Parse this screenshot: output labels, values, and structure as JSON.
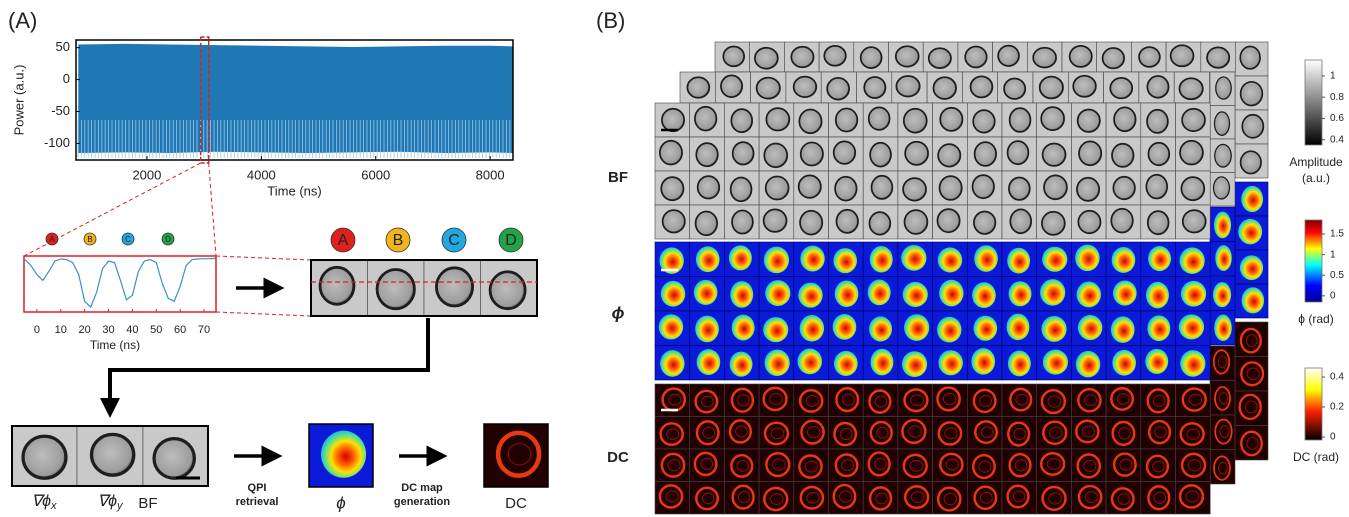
{
  "panel_a": {
    "label": "(A)",
    "power_chart": {
      "type": "line",
      "y_label": "Power (a.u.)",
      "x_label": "Time (ns)",
      "xlim": [
        760,
        8400
      ],
      "ylim": [
        -126,
        62
      ],
      "xticks": [
        2000,
        4000,
        6000,
        8000
      ],
      "yticks": [
        50,
        0,
        -50,
        -100
      ],
      "color": "#1f77b4",
      "zoom_window": [
        2940,
        3080
      ],
      "x": [
        800,
        1600,
        2400,
        3200,
        4000,
        4800,
        5600,
        6400,
        7200,
        8000,
        8400
      ],
      "series": [
        {
          "values": [
            55,
            56,
            55,
            54,
            53,
            52,
            51,
            52,
            53,
            53,
            52
          ]
        },
        {
          "values": [
            -115,
            -114,
            -115,
            -113,
            -114,
            -115,
            -114,
            -113,
            -115,
            -114,
            -115
          ]
        }
      ]
    },
    "inset_chart": {
      "type": "line",
      "x_label": "Time (ns)",
      "xlim": [
        -5.4,
        75
      ],
      "ylim": [
        -126,
        62
      ],
      "xticks": [
        0,
        10,
        20,
        30,
        40,
        50,
        60,
        70
      ],
      "color": "#3a8fd0",
      "x": [
        -5,
        -2.5,
        0,
        2.5,
        5,
        7.5,
        10,
        12.5,
        15,
        17.5,
        20,
        22.5,
        25,
        27.5,
        30,
        32.5,
        35,
        37.5,
        40,
        42.5,
        45,
        47.5,
        50,
        52.5,
        55,
        57.5,
        60,
        62.5,
        65,
        67.5,
        70,
        72.5,
        75
      ],
      "values": [
        50,
        30,
        0,
        -20,
        10,
        45,
        52,
        50,
        40,
        0,
        -90,
        -110,
        -60,
        20,
        45,
        40,
        -20,
        -85,
        -70,
        10,
        45,
        50,
        40,
        -30,
        -80,
        -90,
        -40,
        30,
        50,
        52,
        53,
        53,
        54
      ]
    },
    "cell_labels": [
      {
        "text": "A",
        "color": "#e0201b"
      },
      {
        "text": "B",
        "color": "#f2b31c"
      },
      {
        "text": "C",
        "color": "#22a8e0"
      },
      {
        "text": "D",
        "color": "#22a348"
      }
    ],
    "gradient_captions": [
      {
        "symbol": "∇ϕ",
        "sub": "x"
      },
      {
        "symbol": "∇ϕ",
        "sub": "y"
      }
    ],
    "bf_caption": "BF",
    "step1": [
      "QPI",
      "retrieval"
    ],
    "phi_caption": "ϕ",
    "step2": [
      "DC map",
      "generation"
    ],
    "dc_caption": "DC"
  },
  "panel_b": {
    "label": "(B)",
    "row_labels": [
      "BF",
      "ϕ",
      "DC"
    ],
    "colorbars": [
      {
        "title": [
          "Amplitude",
          "(a.u.)"
        ],
        "lim": [
          0.35,
          1.15
        ],
        "ticks": [
          1,
          0.8,
          0.6,
          0.4
        ]
      },
      {
        "title": [
          "ϕ (rad)"
        ],
        "lim": [
          -0.15,
          1.84
        ],
        "ticks": [
          1.5,
          1,
          0.5,
          0
        ]
      },
      {
        "title": [
          "DC (rad)"
        ],
        "lim": [
          -0.02,
          0.46
        ],
        "ticks": [
          0.4,
          0.2,
          0
        ]
      }
    ]
  }
}
